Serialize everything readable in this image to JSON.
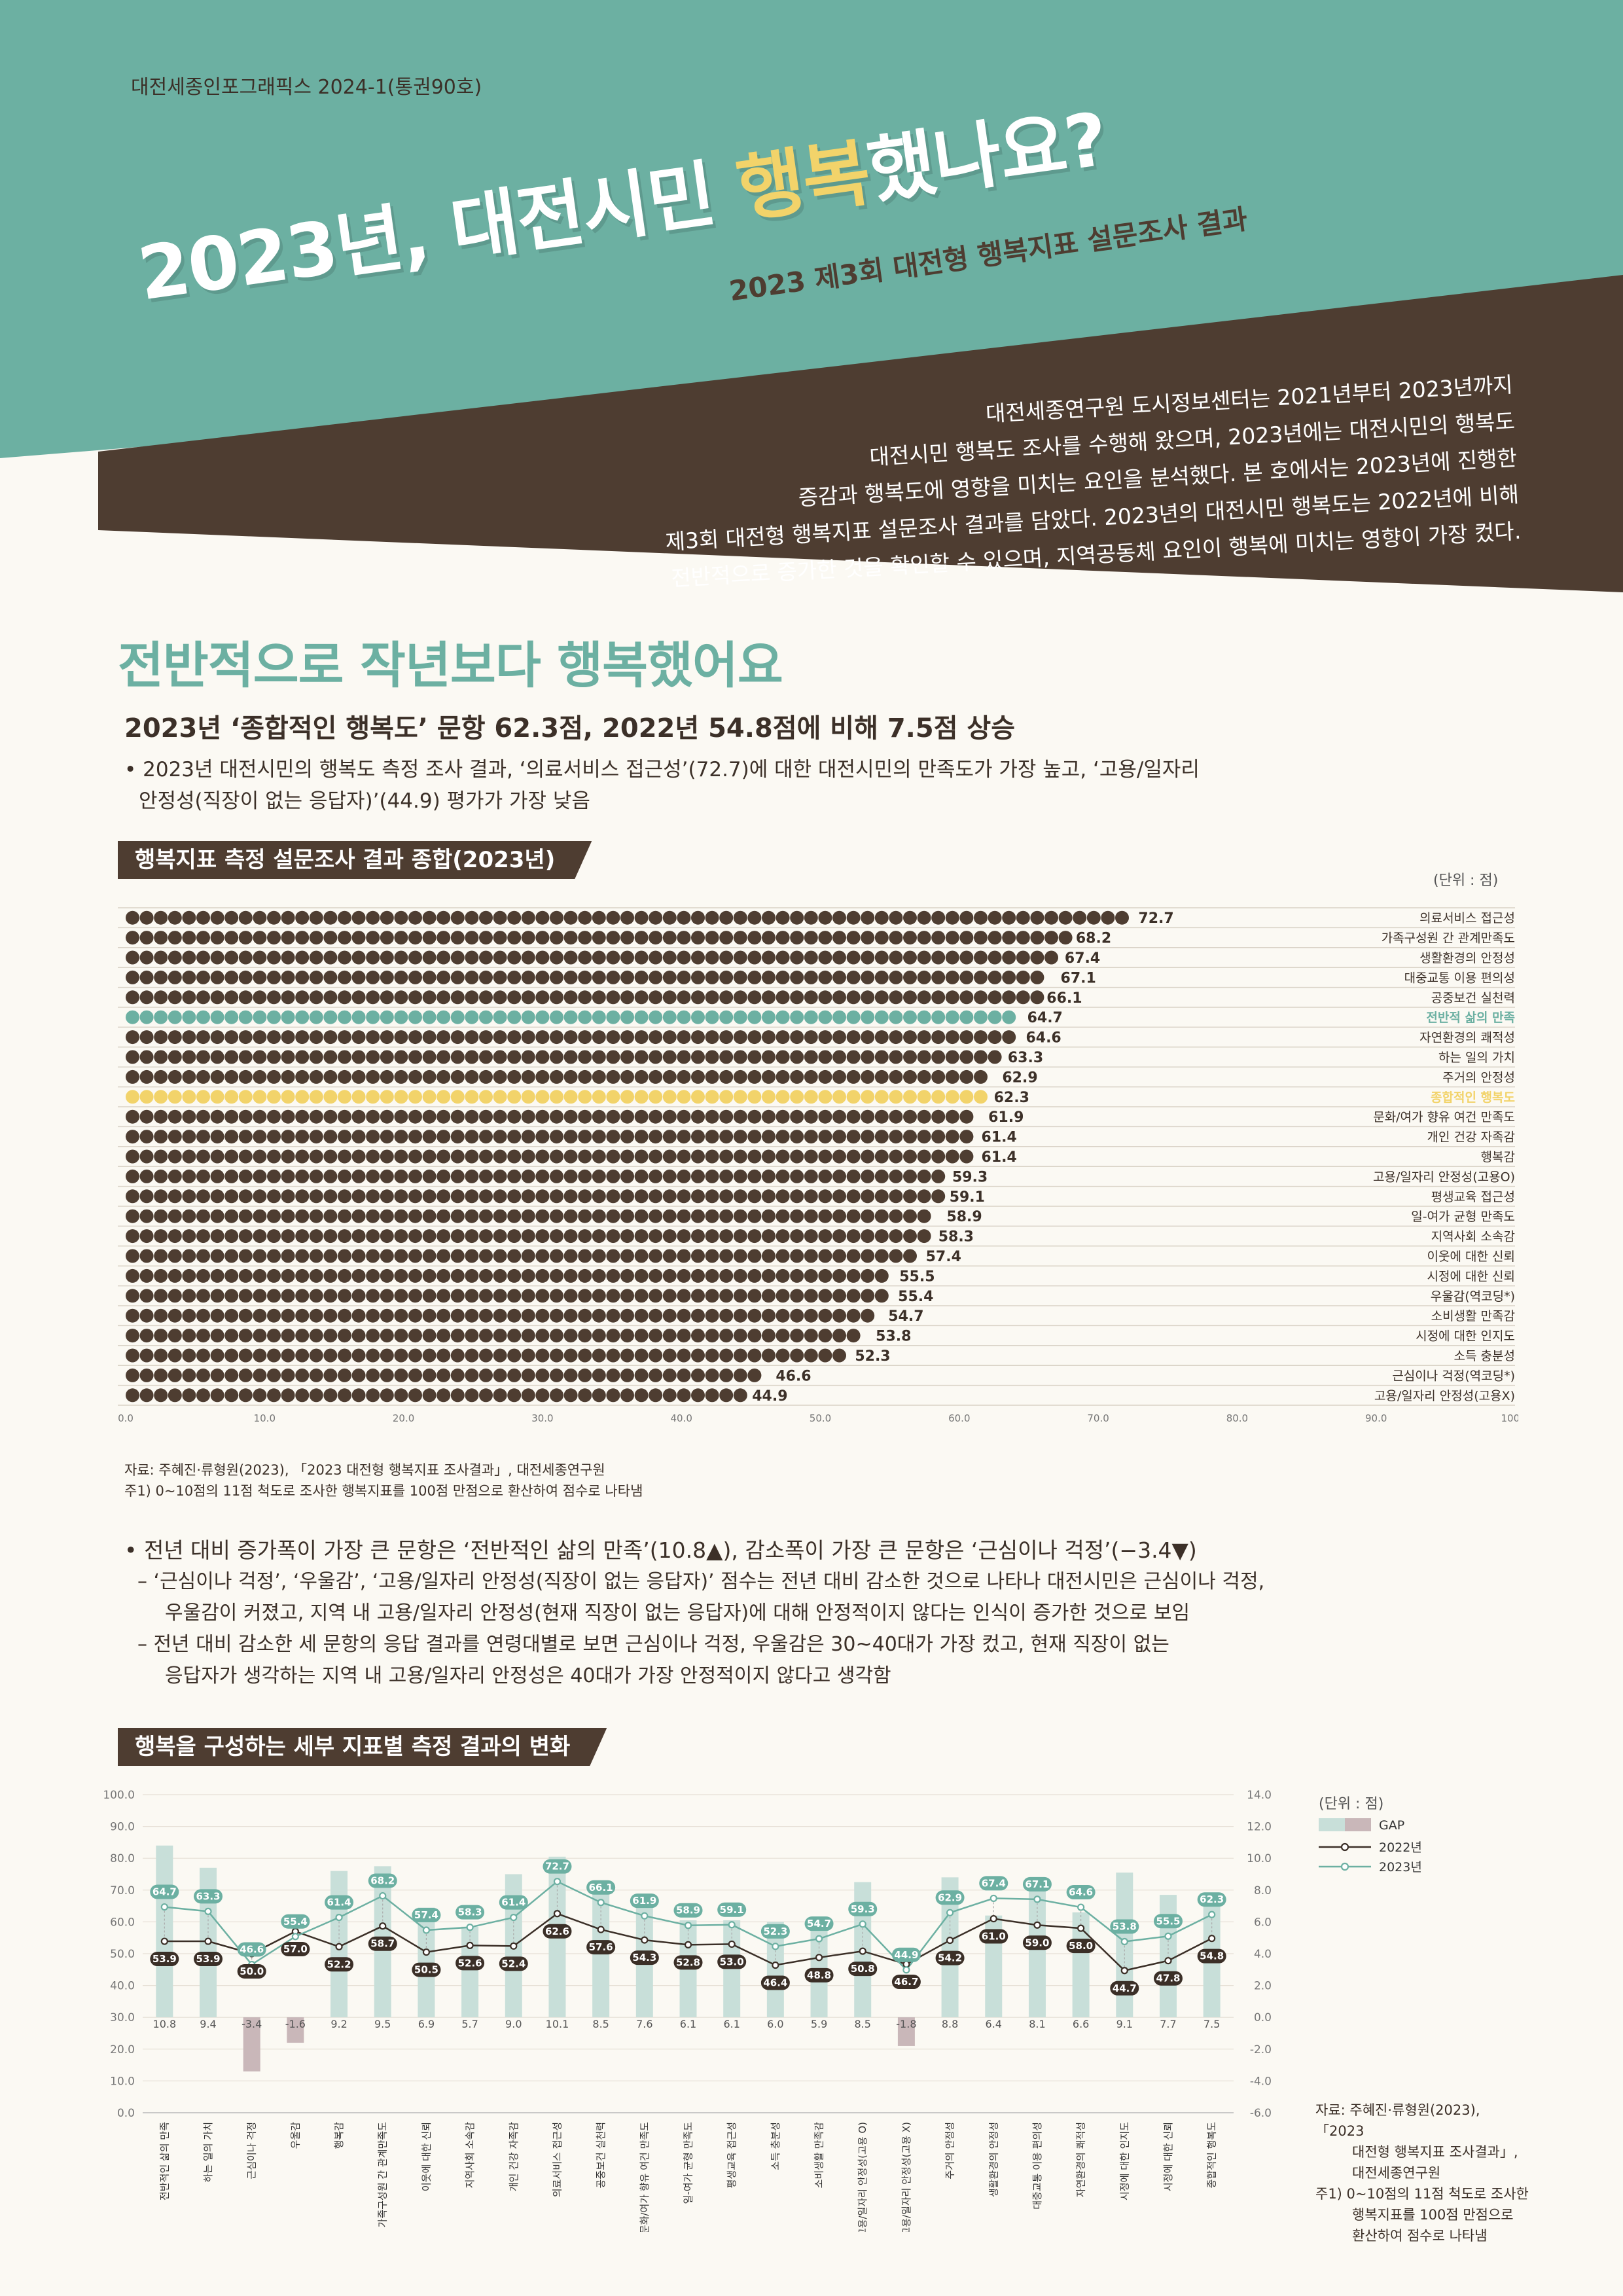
{
  "header": {
    "series": "대전세종인포그래픽스 2024-1(통권90호)",
    "title_pre": "2023년, 대전시민 ",
    "title_hl": "행복",
    "title_post": "했나요?",
    "subtitle": "2023 제3회 대전형 행복지표 설문조사 결과",
    "intro_lines": [
      "대전세종연구원 도시정보센터는 2021년부터 2023년까지",
      "대전시민 행복도 조사를 수행해 왔으며, 2023년에는 대전시민의 행복도",
      "증감과 행복도에 영향을 미치는 요인을 분석했다. 본 호에서는 2023년에 진행한",
      "제3회 대전형 행복지표 설문조사 결과를 담았다. 2023년의 대전시민 행복도는 2022년에 비해",
      "전반적으로 증가한 것을 확인할 수 있으며, 지역공동체 요인이 행복에 미치는 영향이 가장 컸다."
    ],
    "colors": {
      "teal": "#6cb0a2",
      "brown": "#4e3d31",
      "yellow": "#f2d36a"
    }
  },
  "section1": {
    "heading": "전반적으로 작년보다 행복했어요",
    "subheading": "2023년 ‘종합적인 행복도’ 문항 62.3점, 2022년 54.8점에 비해 7.5점 상승",
    "bullet_line1": "• 2023년 대전시민의 행복도 측정 조사 결과, ‘의료서비스 접근성’(72.7)에 대한 대전시민의 만족도가 가장 높고, ‘고용/일자리",
    "bullet_line2": "안정성(직장이 없는 응답자)’(44.9) 평가가 가장 낮음"
  },
  "chart1_meta": {
    "box_title": "행복지표 측정 설문조사 결과 종합(2023년)",
    "unit": "(단위 : 점)",
    "source": "자료: 주혜진·류형원(2023), 「2023 대전형 행복지표 조사결과」, 대전세종연구원",
    "note": "주1) 0~10점의 11점 척도로 조사한 행복지표를 100점 만점으로 환산하여 점수로 나타냄"
  },
  "section2": {
    "bullet": "• 전년 대비 증가폭이 가장 큰 문항은 ‘전반적인 삶의 만족’(10.8▲), 감소폭이 가장 큰 문항은 ‘근심이나 걱정’(−3.4▼)",
    "dash1_line1": "– ‘근심이나 걱정’, ‘우울감’, ‘고용/일자리 안정성(직장이 없는 응답자)’ 점수는 전년 대비 감소한 것으로 나타나 대전시민은 근심이나 걱정,",
    "dash1_line2": "우울감이 커졌고, 지역 내 고용/일자리 안정성(현재 직장이 없는 응답자)에 대해 안정적이지 않다는 인식이 증가한 것으로 보임",
    "dash2_line1": "– 전년 대비 감소한 세 문항의 응답 결과를 연령대별로 보면 근심이나 걱정, 우울감은 30~40대가 가장 컸고, 현재 직장이 없는",
    "dash2_line2": "응답자가 생각하는 지역 내 고용/일자리 안정성은 40대가 가장 안정적이지 않다고 생각함"
  },
  "chart2_meta": {
    "box_title": "행복을 구성하는 세부 지표별 측정 결과의 변화",
    "unit": "(단위 : 점)",
    "source_lines": [
      "자료: 주혜진·류형원(2023), 「2023",
      "대전형 행복지표 조사결과」,",
      "대전세종연구원",
      "주1) 0~10점의 11점 척도로 조사한",
      "행복지표를 100점 만점으로",
      "환산하여 점수로 나타냄"
    ]
  },
  "chart_data": [
    {
      "type": "bar",
      "title": "행복지표 측정 설문조사 결과 종합(2023년)",
      "xlim": [
        0,
        100
      ],
      "xticks": [
        "0.0",
        "10.0",
        "20.0",
        "30.0",
        "40.0",
        "50.0",
        "60.0",
        "70.0",
        "80.0",
        "90.0",
        "100.0"
      ],
      "categories": [
        "의료서비스 접근성",
        "가족구성원 간 관계만족도",
        "생활환경의 안정성",
        "대중교통 이용 편의성",
        "공중보건 실천력",
        "전반적 삶의 만족",
        "자연환경의 쾌적성",
        "하는 일의 가치",
        "주거의 안정성",
        "종합적인 행복도",
        "문화/여가 향유 여건 만족도",
        "개인 건강 자족감",
        "행복감",
        "고용/일자리 안정성(고용O)",
        "평생교육 접근성",
        "일-여가 균형 만족도",
        "지역사회 소속감",
        "이웃에 대한 신뢰",
        "시정에 대한 신뢰",
        "우울감(역코딩*)",
        "소비생활 만족감",
        "시정에 대한 인지도",
        "소득 충분성",
        "근심이나 걱정(역코딩*)",
        "고용/일자리 안정성(고용X)"
      ],
      "values": [
        72.7,
        68.2,
        67.4,
        67.1,
        66.1,
        64.7,
        64.6,
        63.3,
        62.9,
        62.3,
        61.9,
        61.4,
        61.4,
        59.3,
        59.1,
        58.9,
        58.3,
        57.4,
        55.5,
        55.4,
        54.7,
        53.8,
        52.3,
        46.6,
        44.9
      ],
      "highlight": {
        "전반적 삶의 만족": "#6cb0a2",
        "종합적인 행복도": "#f2d36a"
      },
      "default_color": "#4e3d31"
    },
    {
      "type": "line",
      "title": "행복을 구성하는 세부 지표별 측정 결과의 변화",
      "ylim": [
        0,
        100
      ],
      "y2lim": [
        -6,
        14
      ],
      "yticks": [
        "0.0",
        "10.0",
        "20.0",
        "30.0",
        "40.0",
        "50.0",
        "60.0",
        "70.0",
        "80.0",
        "90.0",
        "100.0"
      ],
      "y2ticks": [
        "-6.0",
        "-4.0",
        "-2.0",
        "0.0",
        "2.0",
        "4.0",
        "6.0",
        "8.0",
        "10.0",
        "12.0",
        "14.0"
      ],
      "legend": [
        "GAP",
        "2022년",
        "2023년"
      ],
      "categories": [
        "전반적인 삶의 만족",
        "하는 일의 가치",
        "근심이나 걱정",
        "우울감",
        "행복감",
        "가족구성원 간 관계만족도",
        "이웃에 대한 신뢰",
        "지역사회 소속감",
        "개인 건강 자족감",
        "의료서비스 접근성",
        "공중보건 실천력",
        "문화/여가 향유 여건 만족도",
        "일-여가 균형 만족도",
        "평생교육 접근성",
        "소득 충분성",
        "소비생활 만족감",
        "고용/일자리 안정성(고용 O)",
        "고용/일자리 안정성(고용 X)",
        "주거의 안정성",
        "생활환경의 안정성",
        "대중교통 이용 편의성",
        "자연환경의 쾌적성",
        "시정에 대한 인지도",
        "시정에 대한 신뢰",
        "종합적인 행복도"
      ],
      "series": [
        {
          "name": "2022년",
          "values": [
            53.9,
            53.9,
            50.0,
            57.0,
            52.2,
            58.7,
            50.5,
            52.6,
            52.4,
            62.6,
            57.6,
            54.3,
            52.8,
            53.0,
            46.4,
            48.8,
            50.8,
            46.7,
            54.2,
            61.0,
            59.0,
            58.0,
            44.7,
            47.8,
            54.8
          ]
        },
        {
          "name": "2023년",
          "values": [
            64.7,
            63.3,
            46.6,
            55.4,
            61.4,
            68.2,
            57.4,
            58.3,
            61.4,
            72.7,
            66.1,
            61.9,
            58.9,
            59.1,
            52.3,
            54.7,
            59.3,
            44.9,
            62.9,
            67.4,
            67.1,
            64.6,
            53.8,
            55.5,
            62.3
          ]
        },
        {
          "name": "GAP",
          "values": [
            10.8,
            9.4,
            -3.4,
            -1.6,
            9.2,
            9.5,
            6.9,
            5.7,
            9.0,
            10.1,
            8.5,
            7.6,
            6.1,
            6.1,
            6.0,
            5.9,
            8.5,
            -1.8,
            8.8,
            6.4,
            8.1,
            6.6,
            9.1,
            7.7,
            7.5
          ]
        }
      ],
      "colors": {
        "gap_pos": "#c8dfd9",
        "gap_neg": "#c9b7b9",
        "line_2022": "#3b2f27",
        "line_2023": "#6cb0a2"
      }
    }
  ]
}
